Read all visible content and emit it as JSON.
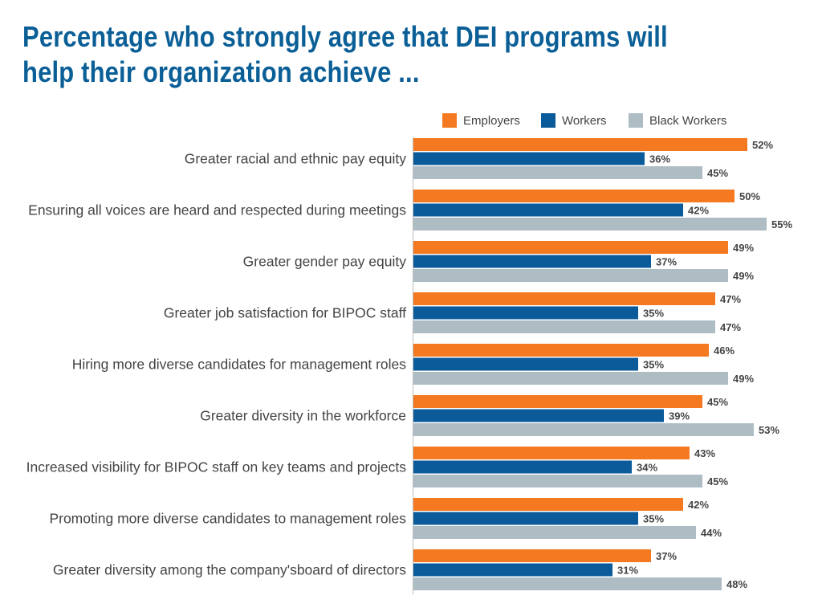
{
  "chart_data": {
    "type": "bar",
    "orientation": "horizontal",
    "title": "Percentage who strongly agree that DEI programs will help their organization achieve ...",
    "categories": [
      "Greater racial and ethnic pay equity",
      "Ensuring all voices are heard and respected during meetings",
      "Greater gender pay equity",
      "Greater job satisfaction for BIPOC staff",
      "Hiring more diverse candidates for management roles",
      "Greater diversity in the workforce",
      "Increased visibility for BIPOC staff on key teams and projects",
      "Promoting more diverse candidates to management roles",
      "Greater diversity among the company'sboard of directors"
    ],
    "series": [
      {
        "name": "Employers",
        "color": "#f47920",
        "values": [
          52,
          50,
          49,
          47,
          46,
          45,
          43,
          42,
          37
        ]
      },
      {
        "name": "Workers",
        "color": "#0b5a99",
        "values": [
          36,
          42,
          37,
          35,
          35,
          39,
          34,
          35,
          31
        ]
      },
      {
        "name": "Black Workers",
        "color": "#aebdc4",
        "values": [
          45,
          55,
          49,
          47,
          49,
          53,
          45,
          44,
          48
        ]
      }
    ],
    "value_suffix": "%",
    "xlim": [
      0,
      60
    ],
    "legend_position": "top-right",
    "grid": false
  }
}
